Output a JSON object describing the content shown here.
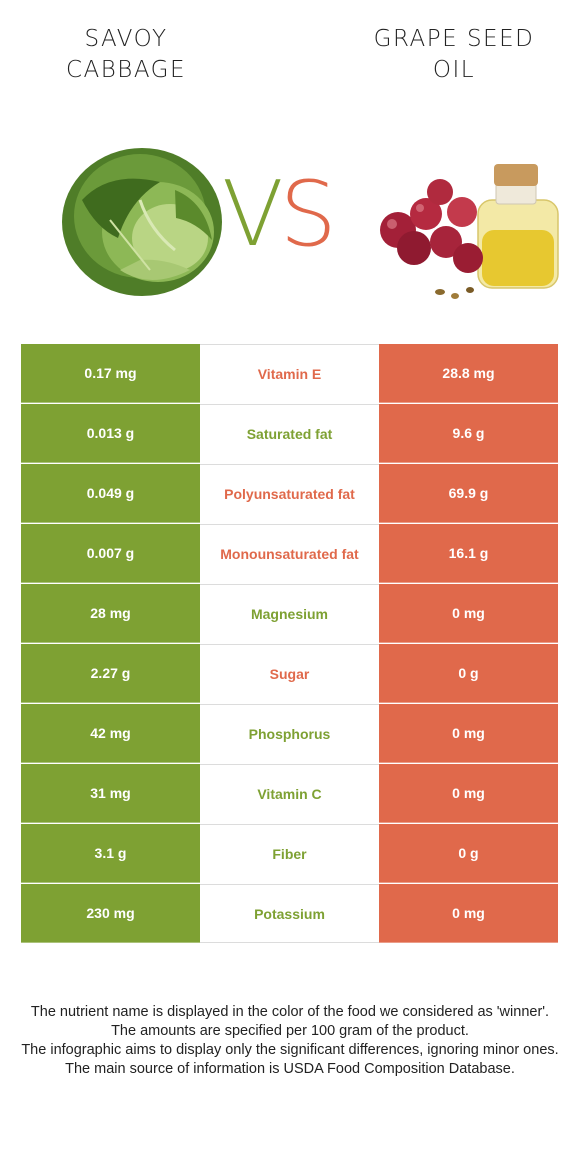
{
  "left_food": {
    "name_line1": "SAVOY",
    "name_line2": "CABBAGE",
    "color": "#7ea133"
  },
  "right_food": {
    "name_line1": "GRAPE SEED",
    "name_line2": "OIL",
    "color": "#e0694b"
  },
  "vs": {
    "v": "V",
    "s": "S"
  },
  "rows": [
    {
      "left": "0.17 mg",
      "nutrient": "Vitamin E",
      "right": "28.8 mg",
      "winner": "right"
    },
    {
      "left": "0.013 g",
      "nutrient": "Saturated fat",
      "right": "9.6 g",
      "winner": "left"
    },
    {
      "left": "0.049 g",
      "nutrient": "Polyunsaturated fat",
      "right": "69.9 g",
      "winner": "right"
    },
    {
      "left": "0.007 g",
      "nutrient": "Monounsaturated fat",
      "right": "16.1 g",
      "winner": "right"
    },
    {
      "left": "28 mg",
      "nutrient": "Magnesium",
      "right": "0 mg",
      "winner": "left"
    },
    {
      "left": "2.27 g",
      "nutrient": "Sugar",
      "right": "0 g",
      "winner": "right"
    },
    {
      "left": "42 mg",
      "nutrient": "Phosphorus",
      "right": "0 mg",
      "winner": "left"
    },
    {
      "left": "31 mg",
      "nutrient": "Vitamin C",
      "right": "0 mg",
      "winner": "left"
    },
    {
      "left": "3.1 g",
      "nutrient": "Fiber",
      "right": "0 g",
      "winner": "left"
    },
    {
      "left": "230 mg",
      "nutrient": "Potassium",
      "right": "0 mg",
      "winner": "left"
    }
  ],
  "footer": {
    "line1": "The nutrient name is displayed in the color of the food we considered as 'winner'.",
    "line2": "The amounts are specified per 100 gram of the product.",
    "line3": "The infographic aims to display only the significant differences, ignoring minor ones.",
    "line4": "The main source of information is USDA Food Composition Database."
  }
}
